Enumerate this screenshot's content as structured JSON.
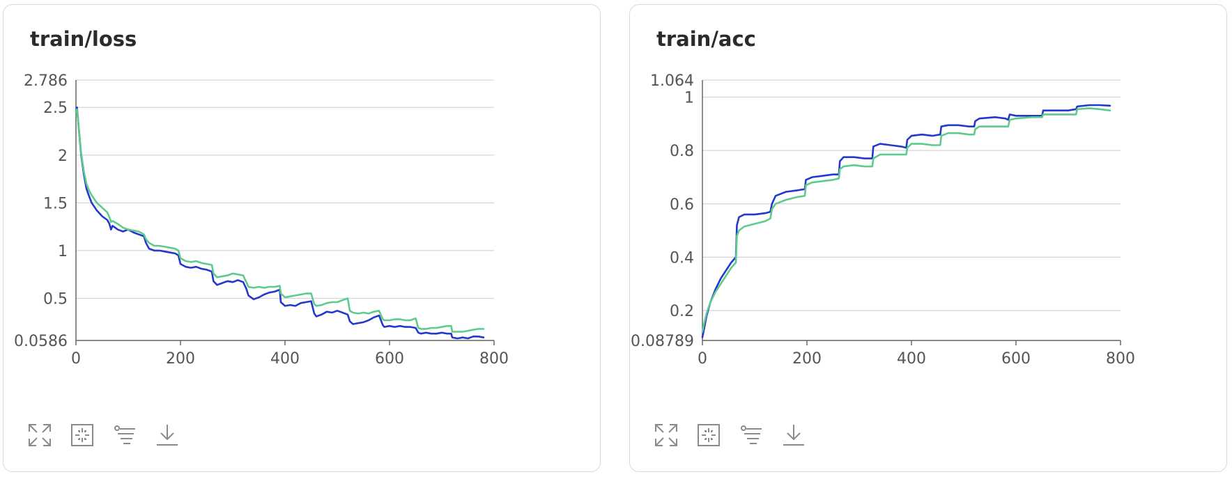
{
  "charts": [
    {
      "id": "loss",
      "title": "train/loss",
      "toolbar": [
        "expand-icon",
        "fit-icon",
        "filter-icon",
        "download-icon"
      ]
    },
    {
      "id": "acc",
      "title": "train/acc",
      "toolbar": [
        "expand-icon",
        "fit-icon",
        "filter-icon",
        "download-icon"
      ]
    }
  ],
  "colors": {
    "series_a": "#2437cf",
    "series_b": "#5dcb8c",
    "grid": "#d6d6d6",
    "axis": "#666666"
  },
  "chart_data": [
    {
      "type": "line",
      "title": "train/loss",
      "xlim": [
        0,
        800
      ],
      "ylim": [
        0.0586,
        2.786
      ],
      "x_ticks": [
        0,
        200,
        400,
        600,
        800
      ],
      "x_tick_labels": [
        "0",
        "200",
        "400",
        "600",
        "800"
      ],
      "y_ticks": [
        0.0586,
        0.5,
        1,
        1.5,
        2,
        2.5,
        2.786
      ],
      "y_tick_labels": [
        "0.0586",
        "0.5",
        "1",
        "1.5",
        "2",
        "2.5",
        "2.786"
      ],
      "grid": true,
      "series": [
        {
          "color": "#2437cf",
          "x": [
            0,
            2,
            5,
            10,
            15,
            20,
            25,
            30,
            40,
            50,
            60,
            64,
            67,
            70,
            80,
            90,
            100,
            110,
            120,
            130,
            134,
            140,
            150,
            160,
            170,
            180,
            190,
            196,
            200,
            210,
            220,
            230,
            240,
            250,
            260,
            263,
            270,
            280,
            290,
            300,
            310,
            320,
            326,
            330,
            340,
            350,
            360,
            370,
            380,
            390,
            392,
            400,
            410,
            420,
            430,
            440,
            450,
            456,
            460,
            470,
            480,
            490,
            500,
            510,
            520,
            524,
            530,
            540,
            550,
            560,
            570,
            580,
            587,
            590,
            600,
            610,
            620,
            630,
            640,
            650,
            655,
            660,
            670,
            680,
            690,
            700,
            710,
            718,
            720,
            730,
            740,
            750,
            760,
            770,
            780
          ],
          "y": [
            2.45,
            2.5,
            2.3,
            2.0,
            1.8,
            1.65,
            1.57,
            1.5,
            1.42,
            1.36,
            1.32,
            1.28,
            1.22,
            1.26,
            1.22,
            1.2,
            1.22,
            1.19,
            1.17,
            1.15,
            1.08,
            1.02,
            1.0,
            1.0,
            0.99,
            0.98,
            0.97,
            0.95,
            0.86,
            0.83,
            0.82,
            0.83,
            0.81,
            0.8,
            0.78,
            0.68,
            0.64,
            0.66,
            0.68,
            0.67,
            0.69,
            0.67,
            0.6,
            0.53,
            0.49,
            0.51,
            0.54,
            0.56,
            0.57,
            0.59,
            0.46,
            0.42,
            0.43,
            0.42,
            0.45,
            0.46,
            0.47,
            0.34,
            0.31,
            0.33,
            0.36,
            0.35,
            0.37,
            0.35,
            0.33,
            0.26,
            0.23,
            0.24,
            0.25,
            0.27,
            0.3,
            0.32,
            0.22,
            0.2,
            0.21,
            0.2,
            0.21,
            0.2,
            0.2,
            0.19,
            0.14,
            0.13,
            0.14,
            0.13,
            0.13,
            0.14,
            0.13,
            0.13,
            0.09,
            0.08,
            0.09,
            0.08,
            0.1,
            0.1,
            0.09
          ]
        },
        {
          "color": "#5dcb8c",
          "x": [
            0,
            2,
            5,
            10,
            15,
            20,
            25,
            30,
            40,
            50,
            60,
            64,
            67,
            70,
            80,
            90,
            100,
            110,
            120,
            130,
            134,
            140,
            150,
            160,
            170,
            180,
            190,
            196,
            200,
            210,
            220,
            230,
            240,
            250,
            260,
            263,
            270,
            280,
            290,
            300,
            310,
            320,
            326,
            330,
            340,
            350,
            360,
            370,
            380,
            390,
            392,
            400,
            410,
            420,
            430,
            440,
            450,
            456,
            460,
            470,
            480,
            490,
            500,
            510,
            520,
            524,
            530,
            540,
            550,
            560,
            570,
            580,
            587,
            590,
            600,
            610,
            620,
            630,
            640,
            650,
            655,
            660,
            670,
            680,
            690,
            700,
            710,
            718,
            720,
            730,
            740,
            750,
            760,
            770,
            780
          ],
          "y": [
            2.45,
            2.48,
            2.3,
            2.02,
            1.83,
            1.7,
            1.63,
            1.58,
            1.5,
            1.45,
            1.4,
            1.35,
            1.3,
            1.31,
            1.28,
            1.24,
            1.22,
            1.21,
            1.2,
            1.17,
            1.12,
            1.08,
            1.05,
            1.05,
            1.04,
            1.03,
            1.02,
            1.0,
            0.92,
            0.89,
            0.88,
            0.89,
            0.87,
            0.86,
            0.85,
            0.76,
            0.72,
            0.73,
            0.74,
            0.76,
            0.75,
            0.74,
            0.67,
            0.62,
            0.61,
            0.62,
            0.61,
            0.62,
            0.62,
            0.63,
            0.55,
            0.51,
            0.52,
            0.53,
            0.54,
            0.55,
            0.55,
            0.44,
            0.42,
            0.43,
            0.45,
            0.46,
            0.46,
            0.48,
            0.5,
            0.37,
            0.35,
            0.34,
            0.35,
            0.34,
            0.36,
            0.37,
            0.28,
            0.27,
            0.27,
            0.28,
            0.28,
            0.27,
            0.27,
            0.29,
            0.19,
            0.18,
            0.18,
            0.19,
            0.19,
            0.2,
            0.21,
            0.21,
            0.15,
            0.15,
            0.15,
            0.16,
            0.17,
            0.18,
            0.18
          ]
        }
      ]
    },
    {
      "type": "line",
      "title": "train/acc",
      "xlim": [
        0,
        800
      ],
      "ylim": [
        0.08789,
        1.064
      ],
      "x_ticks": [
        0,
        200,
        400,
        600,
        800
      ],
      "x_tick_labels": [
        "0",
        "200",
        "400",
        "600",
        "800"
      ],
      "y_ticks": [
        0.08789,
        0.2,
        0.4,
        0.6,
        0.8,
        1,
        1.064
      ],
      "y_tick_labels": [
        "0.08789",
        "0.2",
        "0.4",
        "0.6",
        "0.8",
        "1",
        "1.064"
      ],
      "grid": true,
      "series": [
        {
          "color": "#2437cf",
          "x": [
            0,
            3,
            8,
            15,
            25,
            35,
            45,
            55,
            64,
            66,
            70,
            80,
            100,
            120,
            130,
            133,
            140,
            160,
            180,
            196,
            198,
            210,
            230,
            250,
            261,
            263,
            270,
            290,
            310,
            325,
            327,
            340,
            360,
            380,
            390,
            392,
            400,
            420,
            440,
            455,
            457,
            470,
            490,
            510,
            520,
            522,
            530,
            560,
            580,
            585,
            588,
            600,
            630,
            650,
            652,
            680,
            700,
            715,
            717,
            740,
            760,
            780
          ],
          "y": [
            0.1,
            0.13,
            0.18,
            0.23,
            0.28,
            0.32,
            0.35,
            0.38,
            0.4,
            0.52,
            0.55,
            0.56,
            0.56,
            0.565,
            0.57,
            0.6,
            0.63,
            0.645,
            0.65,
            0.655,
            0.69,
            0.7,
            0.705,
            0.71,
            0.71,
            0.76,
            0.775,
            0.775,
            0.77,
            0.77,
            0.815,
            0.825,
            0.82,
            0.815,
            0.81,
            0.84,
            0.855,
            0.86,
            0.855,
            0.86,
            0.89,
            0.895,
            0.895,
            0.89,
            0.89,
            0.91,
            0.92,
            0.925,
            0.92,
            0.915,
            0.935,
            0.93,
            0.93,
            0.93,
            0.95,
            0.95,
            0.95,
            0.955,
            0.965,
            0.97,
            0.97,
            0.968
          ]
        },
        {
          "color": "#5dcb8c",
          "x": [
            0,
            3,
            8,
            15,
            25,
            35,
            45,
            55,
            64,
            66,
            70,
            80,
            100,
            120,
            130,
            133,
            140,
            160,
            180,
            196,
            198,
            210,
            230,
            250,
            261,
            263,
            270,
            290,
            310,
            325,
            327,
            340,
            360,
            380,
            390,
            392,
            400,
            420,
            440,
            455,
            457,
            470,
            490,
            510,
            520,
            522,
            530,
            560,
            580,
            585,
            588,
            600,
            630,
            650,
            652,
            680,
            700,
            715,
            717,
            740,
            760,
            780
          ],
          "y": [
            0.12,
            0.15,
            0.19,
            0.23,
            0.27,
            0.3,
            0.33,
            0.36,
            0.38,
            0.48,
            0.5,
            0.515,
            0.525,
            0.535,
            0.545,
            0.58,
            0.6,
            0.615,
            0.625,
            0.63,
            0.67,
            0.68,
            0.685,
            0.69,
            0.695,
            0.73,
            0.74,
            0.745,
            0.74,
            0.74,
            0.77,
            0.785,
            0.785,
            0.785,
            0.785,
            0.81,
            0.825,
            0.825,
            0.82,
            0.82,
            0.855,
            0.865,
            0.865,
            0.86,
            0.86,
            0.88,
            0.89,
            0.89,
            0.89,
            0.89,
            0.915,
            0.92,
            0.925,
            0.925,
            0.935,
            0.935,
            0.935,
            0.935,
            0.955,
            0.958,
            0.955,
            0.95
          ]
        }
      ]
    }
  ]
}
